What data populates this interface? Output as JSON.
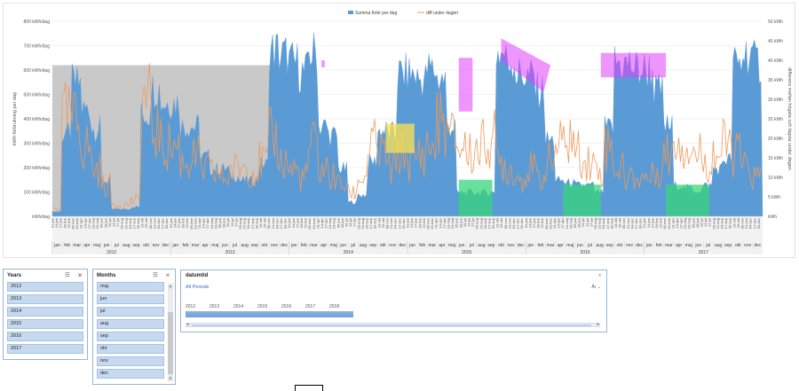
{
  "chart": {
    "legend": {
      "series1": "Summa förbr per dag",
      "series2": "diff under dagen"
    },
    "colors": {
      "series1": "#5b9bd5",
      "series2": "#ed9a5c",
      "gray_band": "#bfbfbf",
      "magenta": "#e040fb",
      "yellow": "#ffe24d",
      "green": "#37d67a"
    },
    "y_left": {
      "label": "kWh förbrukning per dag",
      "ticks": [
        "800 kWh/dag",
        "700 kWh/dag",
        "600 kWh/dag",
        "500 kWh/dag",
        "400 kWh/dag",
        "300 kWh/dag",
        "200 kWh/dag",
        "100 kWh/dag",
        "kWh/dag"
      ]
    },
    "y_right": {
      "label": "differens mellan högsta och lägsta under dagen",
      "ticks": [
        "50 kWh",
        "45 kWh",
        "40 kWh",
        "35 kWh",
        "30 kWh",
        "25 kWh",
        "20 kWh",
        "15 kWh",
        "10 kWh",
        "5 kWh",
        "kWh"
      ]
    },
    "years": [
      "2012",
      "2013",
      "2014",
      "2015",
      "2016",
      "2017"
    ],
    "months": [
      "jan",
      "feb",
      "mar",
      "apr",
      "maj",
      "jun",
      "jul",
      "aug",
      "sep",
      "okt",
      "nov",
      "dec"
    ]
  },
  "chart_data": {
    "type": "area",
    "title": "",
    "ylabel": "kWh förbrukning per dag",
    "y2label": "differens mellan högsta och lägsta under dagen",
    "ylim": [
      0,
      800
    ],
    "y2lim": [
      0,
      50
    ],
    "x_range": [
      "2012-01",
      "2017-12"
    ],
    "legend_position": "top",
    "series": [
      {
        "name": "Summa förbr per dag",
        "axis": "left",
        "monthly_values": [
          [
            20,
            350,
            560,
            450,
            370,
            150,
            30,
            30,
            40,
            430,
            540,
            480
          ],
          [
            480,
            380,
            380,
            250,
            200,
            200,
            170,
            150,
            150,
            220,
            700,
            680
          ],
          [
            650,
            610,
            690,
            380,
            340,
            200,
            60,
            90,
            230,
            360,
            350,
            600
          ],
          [
            600,
            580,
            620,
            580,
            380,
            100,
            100,
            100,
            100,
            690,
            660,
            600
          ],
          [
            590,
            530,
            320,
            150,
            140,
            130,
            130,
            100,
            370,
            650,
            640,
            620
          ],
          [
            620,
            530,
            380,
            130,
            120,
            110,
            130,
            200,
            240,
            640,
            690,
            650
          ]
        ]
      },
      {
        "name": "diff under dagen",
        "axis": "right",
        "monthly_values": [
          [
            2,
            25,
            24,
            18,
            12,
            8,
            3,
            3,
            4,
            30,
            22,
            18
          ],
          [
            18,
            14,
            15,
            12,
            11,
            10,
            12,
            13,
            12,
            14,
            20,
            14
          ],
          [
            12,
            10,
            18,
            12,
            10,
            8,
            6,
            10,
            18,
            16,
            12,
            16
          ],
          [
            14,
            16,
            18,
            24,
            20,
            18,
            16,
            18,
            20,
            14,
            12,
            10
          ],
          [
            12,
            10,
            14,
            18,
            20,
            16,
            14,
            12,
            18,
            12,
            10,
            10
          ],
          [
            10,
            12,
            16,
            20,
            18,
            16,
            14,
            16,
            18,
            16,
            12,
            10
          ]
        ]
      }
    ],
    "x_tick_dates": [
      "01-jan",
      "14-jan",
      "27-jan",
      "09-feb",
      "22-feb",
      "06-mar",
      "19-mar",
      "01-apr",
      "14-apr",
      "27-apr",
      "10-maj",
      "23-maj",
      "05-jun",
      "18-jun",
      "01-jul",
      "14-jul",
      "27-jul",
      "09-aug",
      "22-aug",
      "04-sep",
      "17-sep",
      "30-sep",
      "13-okt",
      "26-okt",
      "08-nov",
      "21-nov",
      "04-dec",
      "17-dec",
      "30-dec"
    ]
  },
  "slicers": {
    "years": {
      "title": "Years",
      "items": [
        "2012",
        "2013",
        "2014",
        "2015",
        "2016",
        "2017"
      ]
    },
    "months": {
      "title": "Months",
      "items": [
        "maj",
        "jun",
        "jul",
        "aug",
        "sep",
        "okt",
        "nov",
        "dec"
      ]
    }
  },
  "timeline": {
    "title": "datumtid",
    "period_label": "All Periods",
    "level": "År",
    "years": [
      "2012",
      "2013",
      "2014",
      "2015",
      "2016",
      "2017",
      "2018"
    ]
  }
}
